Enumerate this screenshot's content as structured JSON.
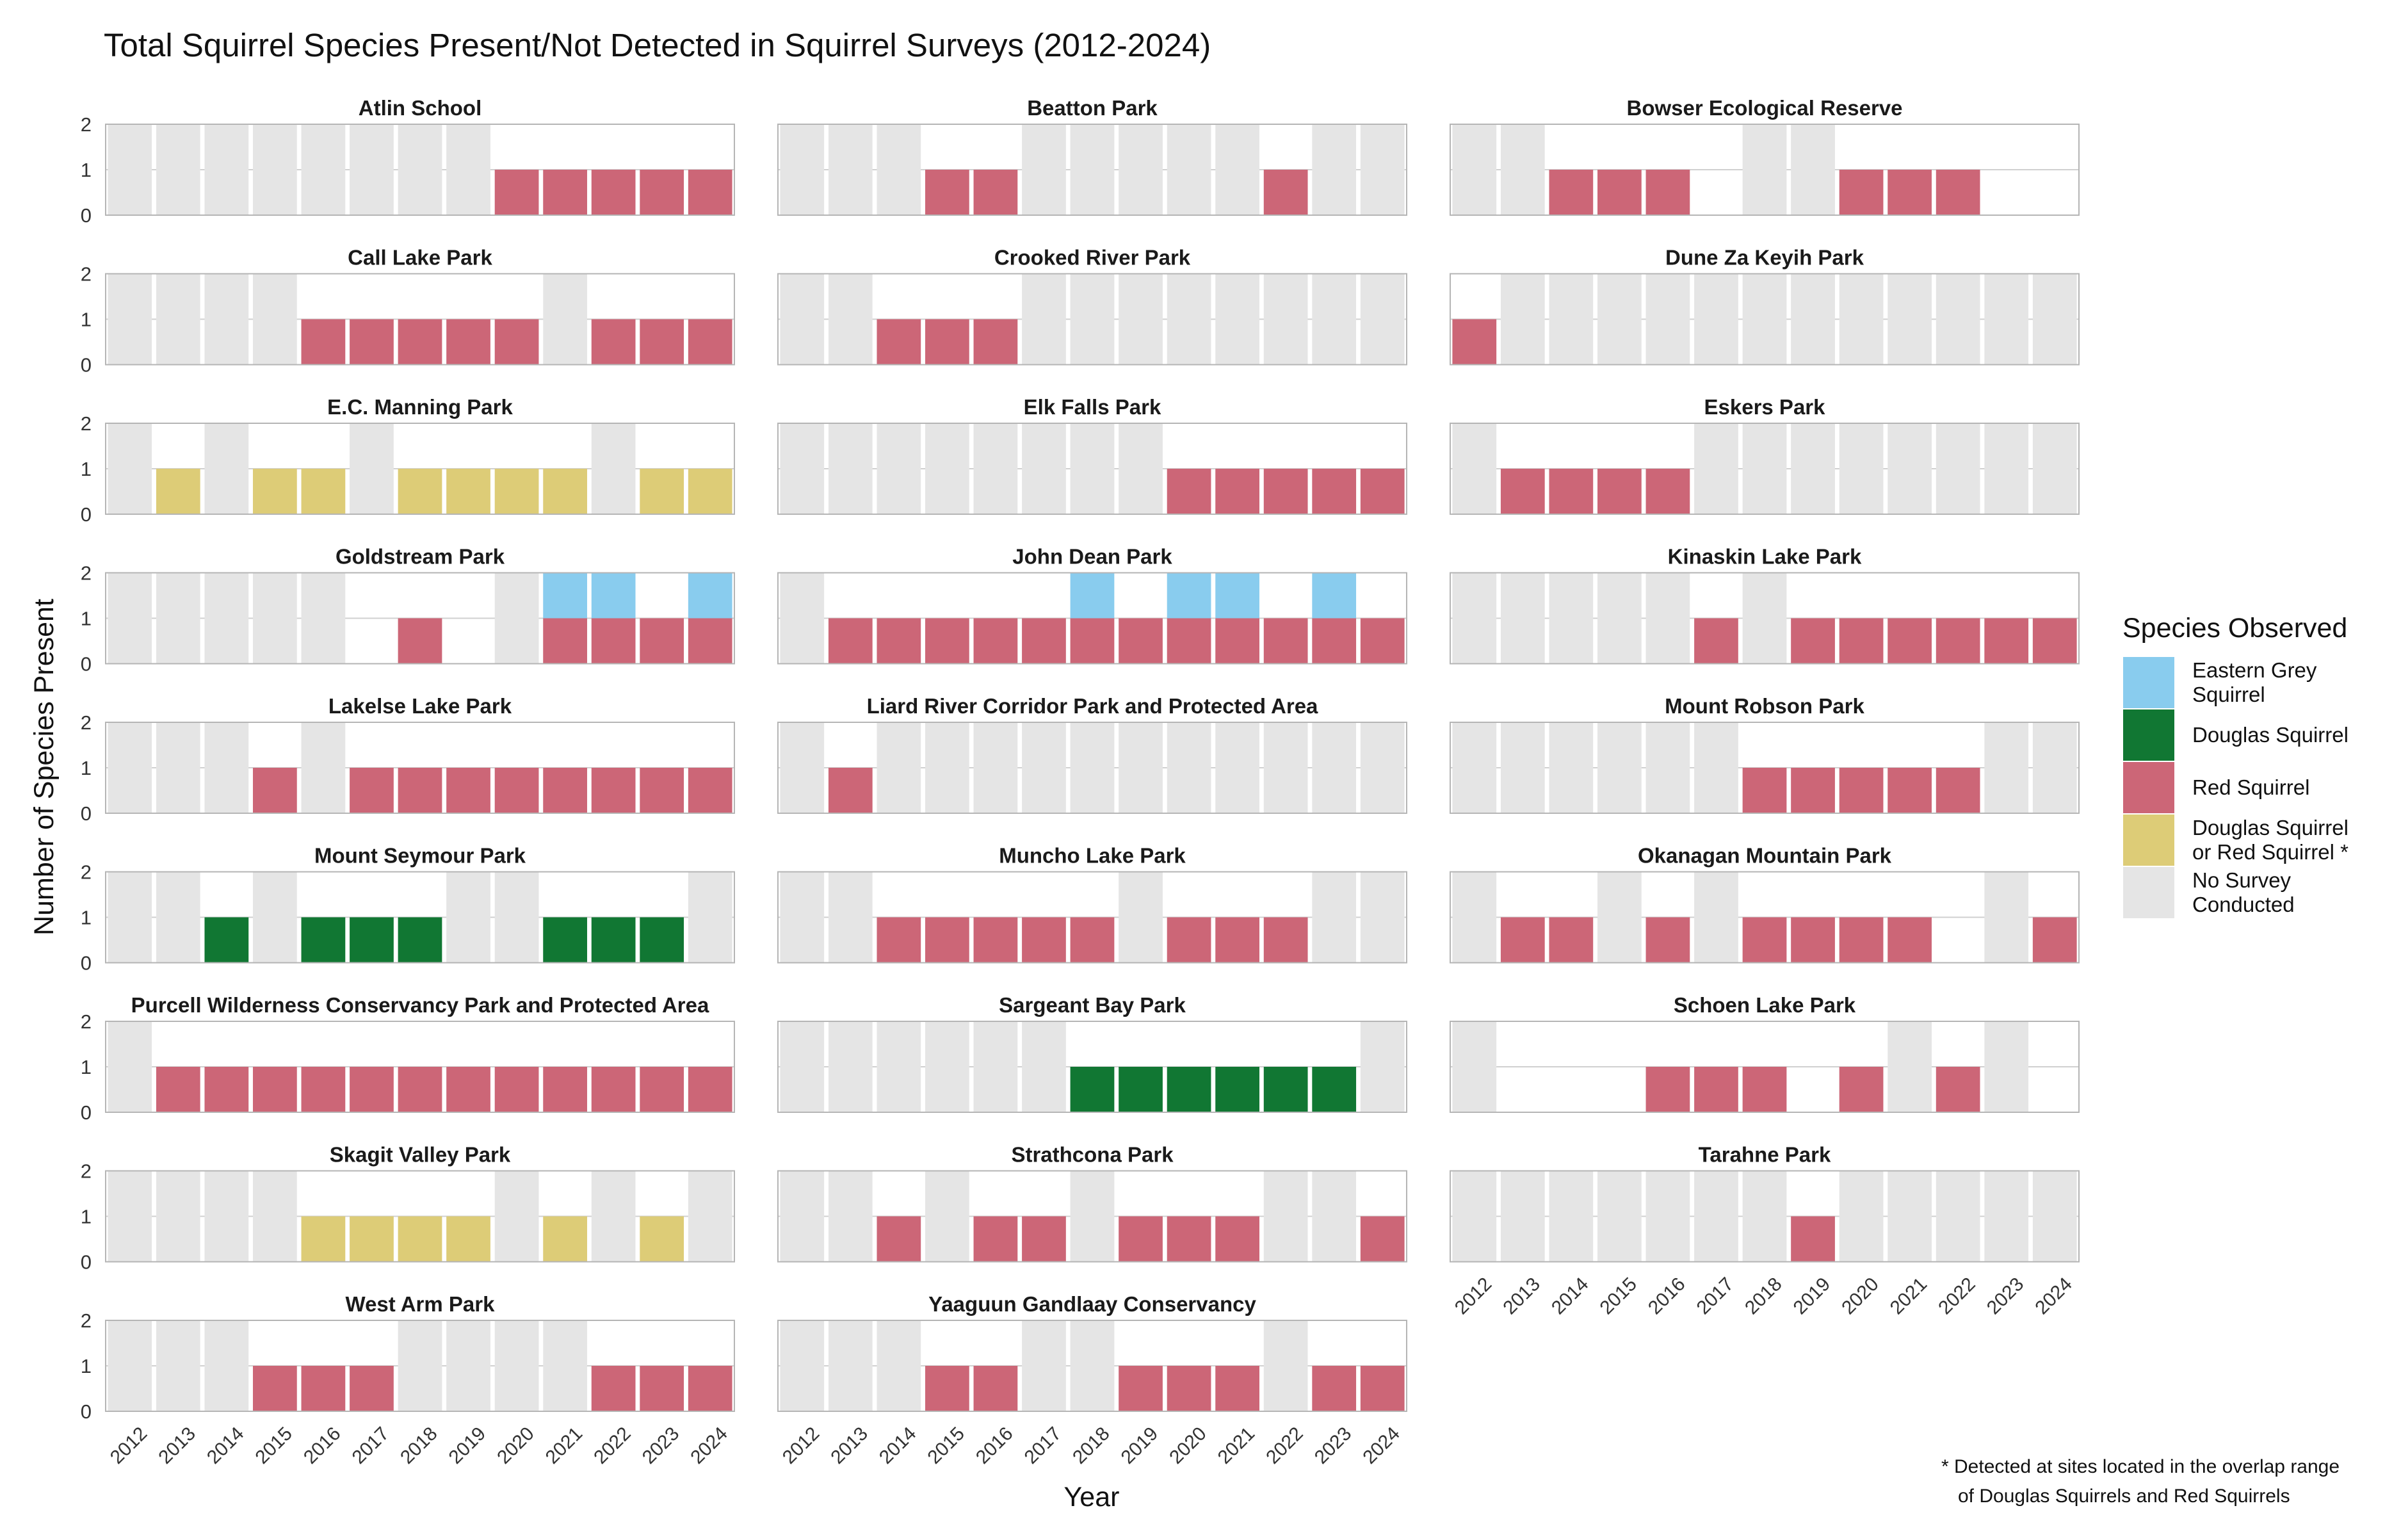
{
  "chart_data": {
    "type": "bar",
    "stacked": true,
    "faceted": true,
    "title": "Total Squirrel Species Present/Not Detected in Squirrel Surveys (2012-2024)",
    "xlabel": "Year",
    "ylabel": "Number of Species Present",
    "ylim": [
      0,
      2
    ],
    "yticks": [
      "0",
      "1",
      "2"
    ],
    "years": [
      "2012",
      "2013",
      "2014",
      "2015",
      "2016",
      "2017",
      "2018",
      "2019",
      "2020",
      "2021",
      "2022",
      "2023",
      "2024"
    ],
    "grid": true,
    "legend": {
      "title": "Species Observed",
      "placement": "right",
      "items": [
        {
          "code": "E",
          "lines": [
            "Eastern Grey",
            "Squirrel"
          ],
          "color": "#89CCEE"
        },
        {
          "code": "D",
          "lines": [
            "Douglas Squirrel"
          ],
          "color": "#117733"
        },
        {
          "code": "R",
          "lines": [
            "Red Squirrel"
          ],
          "color": "#CC6677"
        },
        {
          "code": "Y",
          "lines": [
            "Douglas Squirrel",
            "or Red Squirrel *"
          ],
          "color": "#DDCC77"
        },
        {
          "code": "N",
          "lines": [
            "No Survey",
            "Conducted"
          ],
          "color": "#E5E5E5"
        }
      ]
    },
    "footnote": [
      "* Detected at sites located in the overlap range",
      "of Douglas Squirrels and Red Squirrels"
    ],
    "value_codes": {
      "N": "No Survey Conducted (full height)",
      "0": "surveyed, none detected",
      "R": "Red Squirrel",
      "D": "Douglas Squirrel",
      "Y": "Douglas Squirrel or Red Squirrel",
      "E": "Eastern Grey Squirrel",
      "RE": "Red Squirrel + Eastern Grey Squirrel"
    },
    "panels": [
      {
        "name": "Atlin School",
        "values": [
          "N",
          "N",
          "N",
          "N",
          "N",
          "N",
          "N",
          "N",
          "R",
          "R",
          "R",
          "R",
          "R"
        ]
      },
      {
        "name": "Beatton Park",
        "values": [
          "N",
          "N",
          "N",
          "R",
          "R",
          "N",
          "N",
          "N",
          "N",
          "N",
          "R",
          "N",
          "N"
        ]
      },
      {
        "name": "Bowser Ecological Reserve",
        "values": [
          "N",
          "N",
          "R",
          "R",
          "R",
          "0",
          "N",
          "N",
          "R",
          "R",
          "R",
          "0",
          "0"
        ]
      },
      {
        "name": "Call Lake Park",
        "values": [
          "N",
          "N",
          "N",
          "N",
          "R",
          "R",
          "R",
          "R",
          "R",
          "N",
          "R",
          "R",
          "R"
        ]
      },
      {
        "name": "Crooked River Park",
        "values": [
          "N",
          "N",
          "R",
          "R",
          "R",
          "N",
          "N",
          "N",
          "N",
          "N",
          "N",
          "N",
          "N"
        ]
      },
      {
        "name": "Dune Za Keyih Park",
        "values": [
          "R",
          "N",
          "N",
          "N",
          "N",
          "N",
          "N",
          "N",
          "N",
          "N",
          "N",
          "N",
          "N"
        ]
      },
      {
        "name": "E.C. Manning Park",
        "values": [
          "N",
          "Y",
          "N",
          "Y",
          "Y",
          "N",
          "Y",
          "Y",
          "Y",
          "Y",
          "N",
          "Y",
          "Y"
        ]
      },
      {
        "name": "Elk Falls Park",
        "values": [
          "N",
          "N",
          "N",
          "N",
          "N",
          "N",
          "N",
          "N",
          "R",
          "R",
          "R",
          "R",
          "R"
        ]
      },
      {
        "name": "Eskers Park",
        "values": [
          "N",
          "R",
          "R",
          "R",
          "R",
          "N",
          "N",
          "N",
          "N",
          "N",
          "N",
          "N",
          "N"
        ]
      },
      {
        "name": "Goldstream Park",
        "values": [
          "N",
          "N",
          "N",
          "N",
          "N",
          "0",
          "R",
          "0",
          "N",
          "RE",
          "RE",
          "R",
          "RE"
        ]
      },
      {
        "name": "John Dean Park",
        "values": [
          "N",
          "R",
          "R",
          "R",
          "R",
          "R",
          "RE",
          "R",
          "RE",
          "RE",
          "R",
          "RE",
          "R"
        ]
      },
      {
        "name": "Kinaskin Lake Park",
        "values": [
          "N",
          "N",
          "N",
          "N",
          "N",
          "R",
          "N",
          "R",
          "R",
          "R",
          "R",
          "R",
          "R"
        ]
      },
      {
        "name": "Lakelse Lake Park",
        "values": [
          "N",
          "N",
          "N",
          "R",
          "N",
          "R",
          "R",
          "R",
          "R",
          "R",
          "R",
          "R",
          "R"
        ]
      },
      {
        "name": "Liard River Corridor Park and Protected Area",
        "values": [
          "N",
          "R",
          "N",
          "N",
          "N",
          "N",
          "N",
          "N",
          "N",
          "N",
          "N",
          "N",
          "N"
        ]
      },
      {
        "name": "Mount Robson Park",
        "values": [
          "N",
          "N",
          "N",
          "N",
          "N",
          "N",
          "R",
          "R",
          "R",
          "R",
          "R",
          "N",
          "N"
        ]
      },
      {
        "name": "Mount Seymour Park",
        "values": [
          "N",
          "N",
          "D",
          "N",
          "D",
          "D",
          "D",
          "N",
          "N",
          "D",
          "D",
          "D",
          "N"
        ]
      },
      {
        "name": "Muncho Lake Park",
        "values": [
          "N",
          "N",
          "R",
          "R",
          "R",
          "R",
          "R",
          "N",
          "R",
          "R",
          "R",
          "N",
          "N"
        ]
      },
      {
        "name": "Okanagan Mountain Park",
        "values": [
          "N",
          "R",
          "R",
          "N",
          "R",
          "N",
          "R",
          "R",
          "R",
          "R",
          "0",
          "N",
          "R"
        ]
      },
      {
        "name": "Purcell Wilderness Conservancy Park and Protected Area",
        "values": [
          "N",
          "R",
          "R",
          "R",
          "R",
          "R",
          "R",
          "R",
          "R",
          "R",
          "R",
          "R",
          "R"
        ]
      },
      {
        "name": "Sargeant Bay Park",
        "values": [
          "N",
          "N",
          "N",
          "N",
          "N",
          "N",
          "D",
          "D",
          "D",
          "D",
          "D",
          "D",
          "N"
        ]
      },
      {
        "name": "Schoen Lake Park",
        "values": [
          "N",
          "0",
          "0",
          "0",
          "R",
          "R",
          "R",
          "0",
          "R",
          "N",
          "R",
          "N",
          "0"
        ]
      },
      {
        "name": "Skagit Valley Park",
        "values": [
          "N",
          "N",
          "N",
          "N",
          "Y",
          "Y",
          "Y",
          "Y",
          "N",
          "Y",
          "N",
          "Y",
          "N"
        ]
      },
      {
        "name": "Strathcona Park",
        "values": [
          "N",
          "N",
          "R",
          "N",
          "R",
          "R",
          "N",
          "R",
          "R",
          "R",
          "N",
          "N",
          "R"
        ]
      },
      {
        "name": "Tarahne Park",
        "values": [
          "N",
          "N",
          "N",
          "N",
          "N",
          "N",
          "N",
          "R",
          "N",
          "N",
          "N",
          "N",
          "N"
        ]
      },
      {
        "name": "West Arm Park",
        "values": [
          "N",
          "N",
          "N",
          "R",
          "R",
          "R",
          "N",
          "N",
          "N",
          "N",
          "R",
          "R",
          "R"
        ]
      },
      {
        "name": "Yaaguun Gandlaay Conservancy",
        "values": [
          "N",
          "N",
          "N",
          "R",
          "R",
          "N",
          "N",
          "R",
          "R",
          "R",
          "N",
          "R",
          "R"
        ]
      }
    ]
  }
}
